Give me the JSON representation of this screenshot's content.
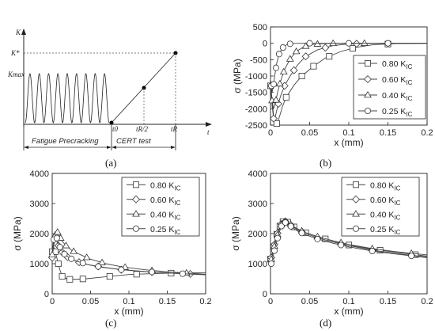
{
  "panel_labels": [
    "(a)",
    "(b)",
    "(c)",
    "(d)"
  ],
  "schematic": {
    "y_axis_label": "K",
    "x_axis_label": "t",
    "k_star_label": "K*",
    "kmax_label": "Kmax",
    "t0_label": "t0",
    "tr_half_label": "tR/2",
    "tr_label": "tR",
    "fatigue_label": "Fatigue Precracking",
    "cert_label": "CERT test",
    "cycles": 9
  },
  "legend_entries": [
    "0.80 K",
    "0.60 K",
    "0.40 K",
    "0.25 K"
  ],
  "legend_sub": "IC",
  "chart_data": [
    {
      "panel": "(b)",
      "type": "line",
      "xlabel": "x (mm)",
      "ylabel": "σ (MPa)",
      "xlim": [
        0,
        0.2
      ],
      "ylim": [
        -2500,
        500
      ],
      "xticks": [
        0,
        0.05,
        0.1,
        0.15,
        0.2
      ],
      "xtick_labels": [
        "0",
        "0.05",
        "0.1",
        "0.15",
        "0.2"
      ],
      "yticks": [
        -2500,
        -2000,
        -1500,
        -1000,
        -500,
        0,
        500
      ],
      "ytick_labels": [
        "-2500",
        "-2000",
        "-1500",
        "-1000",
        "-500",
        "0",
        "500"
      ],
      "legend_position": "right",
      "grid": false,
      "series": [
        {
          "name": "0.80 KIC",
          "marker": "square",
          "x": [
            0,
            0.002,
            0.004,
            0.006,
            0.008,
            0.01,
            0.012,
            0.015,
            0.02,
            0.03,
            0.04,
            0.055,
            0.07,
            0.09,
            0.11,
            0.13,
            0.16,
            0.2
          ],
          "y": [
            -1300,
            -1800,
            -2200,
            -2420,
            -2450,
            -2350,
            -2200,
            -1950,
            -1650,
            -1280,
            -1000,
            -700,
            -450,
            -250,
            -120,
            -50,
            -10,
            0
          ],
          "markers": [
            0,
            0.008,
            0.02,
            0.04,
            0.055,
            0.075,
            0.105,
            0.15
          ]
        },
        {
          "name": "0.60 KIC",
          "marker": "diamond",
          "x": [
            0,
            0.002,
            0.004,
            0.006,
            0.008,
            0.01,
            0.013,
            0.018,
            0.025,
            0.035,
            0.045,
            0.06,
            0.08,
            0.1,
            0.13,
            0.16,
            0.2
          ],
          "y": [
            -1200,
            -1900,
            -2300,
            -2250,
            -2050,
            -1850,
            -1600,
            -1300,
            -1000,
            -650,
            -400,
            -200,
            -70,
            -20,
            0,
            0,
            0
          ],
          "markers": [
            0.004,
            0.01,
            0.018,
            0.03,
            0.045,
            0.07,
            0.11
          ]
        },
        {
          "name": "0.40 KIC",
          "marker": "triangle",
          "x": [
            0,
            0.002,
            0.004,
            0.006,
            0.009,
            0.013,
            0.018,
            0.025,
            0.033,
            0.043,
            0.055,
            0.07,
            0.09,
            0.12,
            0.16,
            0.2
          ],
          "y": [
            -1100,
            -1750,
            -2000,
            -1850,
            -1500,
            -1150,
            -800,
            -480,
            -250,
            -100,
            -30,
            -5,
            0,
            0,
            0,
            0
          ],
          "markers": [
            0.002,
            0.007,
            0.012,
            0.017,
            0.025,
            0.033,
            0.045,
            0.06,
            0.08,
            0.12
          ]
        },
        {
          "name": "0.25 KIC",
          "marker": "circle",
          "x": [
            0,
            0.002,
            0.004,
            0.006,
            0.008,
            0.011,
            0.015,
            0.02,
            0.026,
            0.035,
            0.05,
            0.08,
            0.12,
            0.16,
            0.2
          ],
          "y": [
            -1100,
            -1500,
            -1250,
            -900,
            -600,
            -330,
            -150,
            -50,
            -10,
            0,
            0,
            0,
            0,
            0,
            0
          ],
          "markers": [
            0.001,
            0.004,
            0.007,
            0.011,
            0.016,
            0.025,
            0.05,
            0.1,
            0.15
          ]
        }
      ]
    },
    {
      "panel": "(c)",
      "type": "line",
      "xlabel": "x (mm)",
      "ylabel": "σ (MPa)",
      "xlim": [
        0,
        0.2
      ],
      "ylim": [
        0,
        4000
      ],
      "xticks": [
        0,
        0.05,
        0.1,
        0.15,
        0.2
      ],
      "xtick_labels": [
        "0",
        "0.05",
        "0.1",
        "0.15",
        "0.2"
      ],
      "yticks": [
        0,
        1000,
        2000,
        3000,
        4000
      ],
      "ytick_labels": [
        "0",
        "1000",
        "2000",
        "3000",
        "4000"
      ],
      "legend_position": "top-right",
      "grid": false,
      "series": [
        {
          "name": "0.80 KIC",
          "marker": "square",
          "x": [
            0,
            0.002,
            0.004,
            0.006,
            0.008,
            0.01,
            0.013,
            0.02,
            0.03,
            0.045,
            0.06,
            0.08,
            0.1,
            0.13,
            0.16,
            0.2
          ],
          "y": [
            1400,
            1550,
            1400,
            1200,
            1000,
            800,
            580,
            480,
            480,
            500,
            540,
            590,
            640,
            670,
            690,
            700
          ],
          "markers": [
            0,
            0.004,
            0.008,
            0.013,
            0.023,
            0.04,
            0.075,
            0.11,
            0.155
          ]
        },
        {
          "name": "0.60 KIC",
          "marker": "diamond",
          "x": [
            0,
            0.002,
            0.004,
            0.006,
            0.008,
            0.01,
            0.013,
            0.018,
            0.025,
            0.035,
            0.05,
            0.07,
            0.09,
            0.12,
            0.15,
            0.2
          ],
          "y": [
            1200,
            1600,
            1850,
            1750,
            1600,
            1500,
            1380,
            1250,
            1150,
            1050,
            950,
            870,
            800,
            740,
            690,
            640
          ],
          "markers": [
            0,
            0.004,
            0.008,
            0.013,
            0.02,
            0.035,
            0.06,
            0.09,
            0.13,
            0.18
          ]
        },
        {
          "name": "0.40 KIC",
          "marker": "triangle",
          "x": [
            0,
            0.002,
            0.004,
            0.007,
            0.01,
            0.013,
            0.018,
            0.025,
            0.035,
            0.05,
            0.07,
            0.09,
            0.12,
            0.15,
            0.2
          ],
          "y": [
            1300,
            1700,
            1950,
            2050,
            1900,
            1750,
            1600,
            1450,
            1320,
            1150,
            1000,
            900,
            800,
            730,
            650
          ],
          "markers": [
            0,
            0.004,
            0.007,
            0.011,
            0.018,
            0.028,
            0.045,
            0.065,
            0.095,
            0.13,
            0.175
          ]
        },
        {
          "name": "0.25 KIC",
          "marker": "circle",
          "x": [
            0,
            0.002,
            0.004,
            0.006,
            0.009,
            0.012,
            0.016,
            0.022,
            0.03,
            0.045,
            0.065,
            0.09,
            0.12,
            0.16,
            0.2
          ],
          "y": [
            1400,
            1800,
            1950,
            1850,
            1600,
            1450,
            1320,
            1200,
            1100,
            980,
            880,
            800,
            740,
            680,
            630
          ],
          "markers": [
            0.002,
            0.006,
            0.01,
            0.016,
            0.025,
            0.04,
            0.06,
            0.09,
            0.13,
            0.17
          ]
        }
      ]
    },
    {
      "panel": "(d)",
      "type": "line",
      "xlabel": "x (mm)",
      "ylabel": "σ (MPa)",
      "xlim": [
        0,
        0.2
      ],
      "ylim": [
        0,
        4000
      ],
      "xticks": [
        0,
        0.05,
        0.1,
        0.15,
        0.2
      ],
      "xtick_labels": [
        "0",
        "0.05",
        "0.1",
        "0.15",
        "0.2"
      ],
      "yticks": [
        0,
        1000,
        2000,
        3000,
        4000
      ],
      "ytick_labels": [
        "0",
        "1000",
        "2000",
        "3000",
        "4000"
      ],
      "legend_position": "top-right",
      "grid": false,
      "series": [
        {
          "name": "0.80 KIC",
          "marker": "square",
          "x": [
            0,
            0.003,
            0.006,
            0.01,
            0.014,
            0.018,
            0.022,
            0.028,
            0.035,
            0.045,
            0.06,
            0.08,
            0.1,
            0.13,
            0.16,
            0.2
          ],
          "y": [
            1150,
            1450,
            1800,
            2150,
            2350,
            2450,
            2380,
            2250,
            2150,
            2030,
            1900,
            1750,
            1620,
            1480,
            1380,
            1250
          ],
          "markers": [
            0,
            0.004,
            0.008,
            0.012,
            0.016,
            0.022,
            0.03,
            0.045,
            0.07,
            0.1,
            0.14,
            0.185
          ]
        },
        {
          "name": "0.60 KIC",
          "marker": "diamond",
          "x": [
            0,
            0.003,
            0.006,
            0.01,
            0.014,
            0.018,
            0.022,
            0.028,
            0.035,
            0.045,
            0.06,
            0.08,
            0.1,
            0.13,
            0.16,
            0.2
          ],
          "y": [
            1100,
            1400,
            1750,
            2100,
            2320,
            2420,
            2360,
            2240,
            2120,
            2000,
            1860,
            1720,
            1600,
            1450,
            1340,
            1220
          ],
          "markers": [
            0.001,
            0.005,
            0.009,
            0.014,
            0.019,
            0.026,
            0.04,
            0.06,
            0.09,
            0.13,
            0.18
          ]
        },
        {
          "name": "0.40 KIC",
          "marker": "triangle",
          "x": [
            0,
            0.003,
            0.006,
            0.01,
            0.014,
            0.018,
            0.022,
            0.028,
            0.035,
            0.045,
            0.06,
            0.08,
            0.1,
            0.13,
            0.16,
            0.2
          ],
          "y": [
            1050,
            1350,
            1700,
            2050,
            2300,
            2420,
            2370,
            2260,
            2150,
            2030,
            1900,
            1760,
            1640,
            1500,
            1400,
            1290
          ],
          "markers": [
            0.001,
            0.005,
            0.009,
            0.014,
            0.019,
            0.026,
            0.04,
            0.06,
            0.09,
            0.13,
            0.18
          ]
        },
        {
          "name": "0.25 KIC",
          "marker": "circle",
          "x": [
            0,
            0.003,
            0.006,
            0.01,
            0.014,
            0.018,
            0.022,
            0.028,
            0.035,
            0.045,
            0.06,
            0.08,
            0.1,
            0.13,
            0.16,
            0.2
          ],
          "y": [
            900,
            1200,
            1550,
            1950,
            2250,
            2380,
            2330,
            2200,
            2080,
            1960,
            1820,
            1680,
            1560,
            1420,
            1320,
            1200
          ],
          "markers": [
            0.001,
            0.005,
            0.009,
            0.014,
            0.019,
            0.026,
            0.04,
            0.06,
            0.09,
            0.13,
            0.18
          ]
        }
      ]
    }
  ]
}
